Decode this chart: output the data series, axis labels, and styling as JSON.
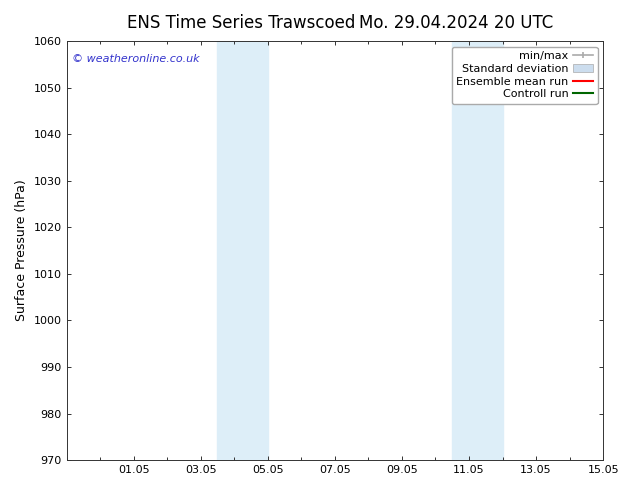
{
  "title_left": "ENS Time Series Trawscoed",
  "title_right": "Mo. 29.04.2024 20 UTC",
  "ylabel": "Surface Pressure (hPa)",
  "ylim": [
    970,
    1060
  ],
  "yticks": [
    970,
    980,
    990,
    1000,
    1010,
    1020,
    1030,
    1040,
    1050,
    1060
  ],
  "xtick_labels": [
    "01.05",
    "03.05",
    "05.05",
    "07.05",
    "09.05",
    "11.05",
    "13.05",
    "15.05"
  ],
  "xtick_positions": [
    2,
    4,
    6,
    8,
    10,
    12,
    14,
    16
  ],
  "xlim": [
    0,
    16
  ],
  "shaded_regions": [
    {
      "x_start": 4.5,
      "x_end": 6.0
    },
    {
      "x_start": 11.5,
      "x_end": 13.0
    }
  ],
  "shaded_color": "#ddeef8",
  "watermark_text": "© weatheronline.co.uk",
  "watermark_color": "#3333cc",
  "background_color": "#ffffff",
  "legend_items": [
    {
      "label": "min/max",
      "color": "#aaaaaa",
      "style": "minmax"
    },
    {
      "label": "Standard deviation",
      "color": "#ccddee",
      "style": "patch"
    },
    {
      "label": "Ensemble mean run",
      "color": "#ff0000",
      "style": "line"
    },
    {
      "label": "Controll run",
      "color": "#006600",
      "style": "line"
    }
  ],
  "grid_color": "#dddddd",
  "spine_color": "#333333",
  "tick_color": "#333333",
  "title_fontsize": 12,
  "label_fontsize": 9,
  "tick_fontsize": 8,
  "watermark_fontsize": 8,
  "legend_fontsize": 8
}
